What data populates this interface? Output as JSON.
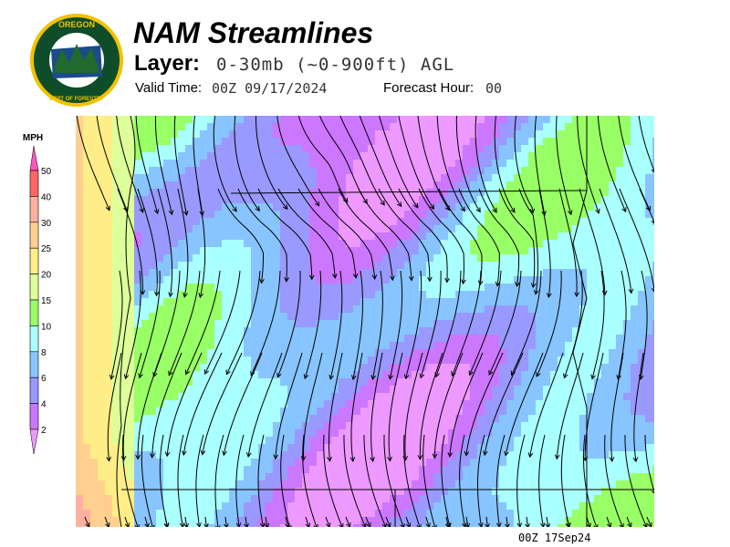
{
  "logo": {
    "text_top": "OREGON",
    "text_bottom": "DEPARTMENT OF FORESTRY",
    "colors": {
      "ring": "#0f4d2a",
      "border": "#f2c200"
    }
  },
  "header": {
    "title": "NAM Streamlines",
    "layer_label": "Layer:",
    "layer_value": "0-30mb (~0-900ft) AGL",
    "valid_label": "Valid Time:",
    "valid_value": "00Z 09/17/2024",
    "forecast_label": "Forecast Hour:",
    "forecast_value": "00"
  },
  "legend": {
    "unit": "MPH",
    "ticks": [
      "50",
      "40",
      "30",
      "25",
      "20",
      "15",
      "10",
      "8",
      "6",
      "4",
      "2"
    ],
    "colors": {
      "above": "#ff55bb",
      "40-50": "#ff6666",
      "30-40": "#ffb0a0",
      "25-30": "#ffd090",
      "20-25": "#ffee88",
      "15-20": "#ddff99",
      "10-15": "#99ff66",
      "8-10": "#aaffff",
      "6-8": "#88c4ff",
      "4-6": "#9999ff",
      "2-4": "#cc77ff",
      "below": "#ee99ff"
    }
  },
  "map": {
    "timestamp": "00Z 17Sep24"
  }
}
